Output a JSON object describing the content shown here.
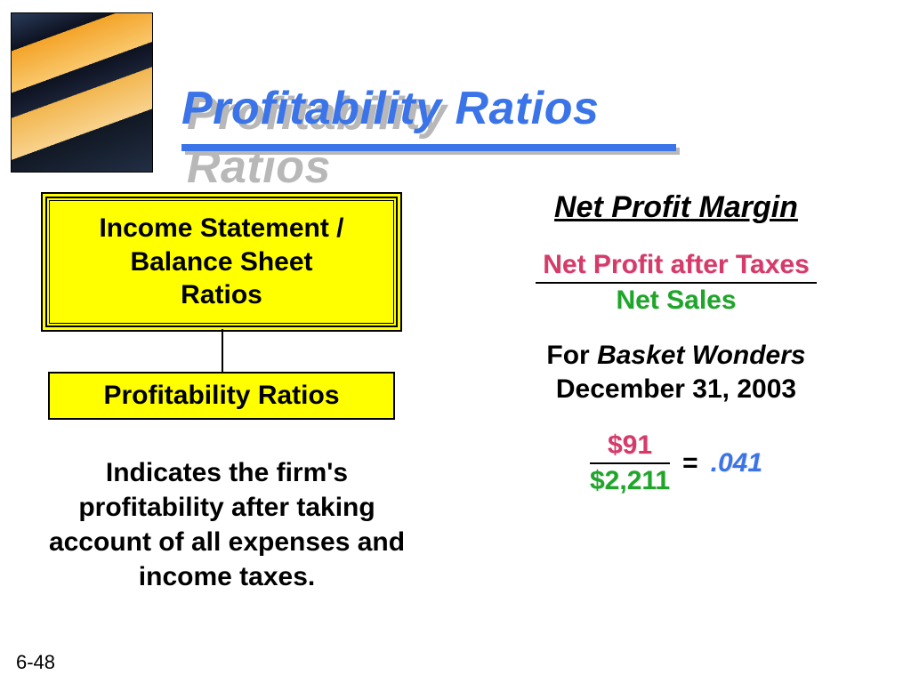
{
  "title": "Profitability Ratios",
  "title_color": "#3a74e8",
  "title_shadow_color": "#b8b8b8",
  "underline_color": "#3a74e8",
  "left": {
    "box1_line1": "Income Statement /",
    "box1_line2": "Balance Sheet",
    "box1_line3": "Ratios",
    "box2": "Profitability Ratios",
    "box_bg": "#ffff00",
    "description": "Indicates the firm's profitability after taking account of all expenses and income taxes."
  },
  "right": {
    "subhead": "Net Profit Margin",
    "formula_numerator": "Net Profit after Taxes",
    "formula_denominator": "Net Sales",
    "numerator_color": "#d63a6a",
    "denominator_color": "#1fa62a",
    "example_for": "For",
    "example_company": "Basket Wonders",
    "example_date": "December 31, 2003",
    "calc_numerator": "$91",
    "calc_denominator": "$2,211",
    "equals": "=",
    "result": ".041",
    "result_color": "#3a74e8"
  },
  "page_number": "6-48"
}
